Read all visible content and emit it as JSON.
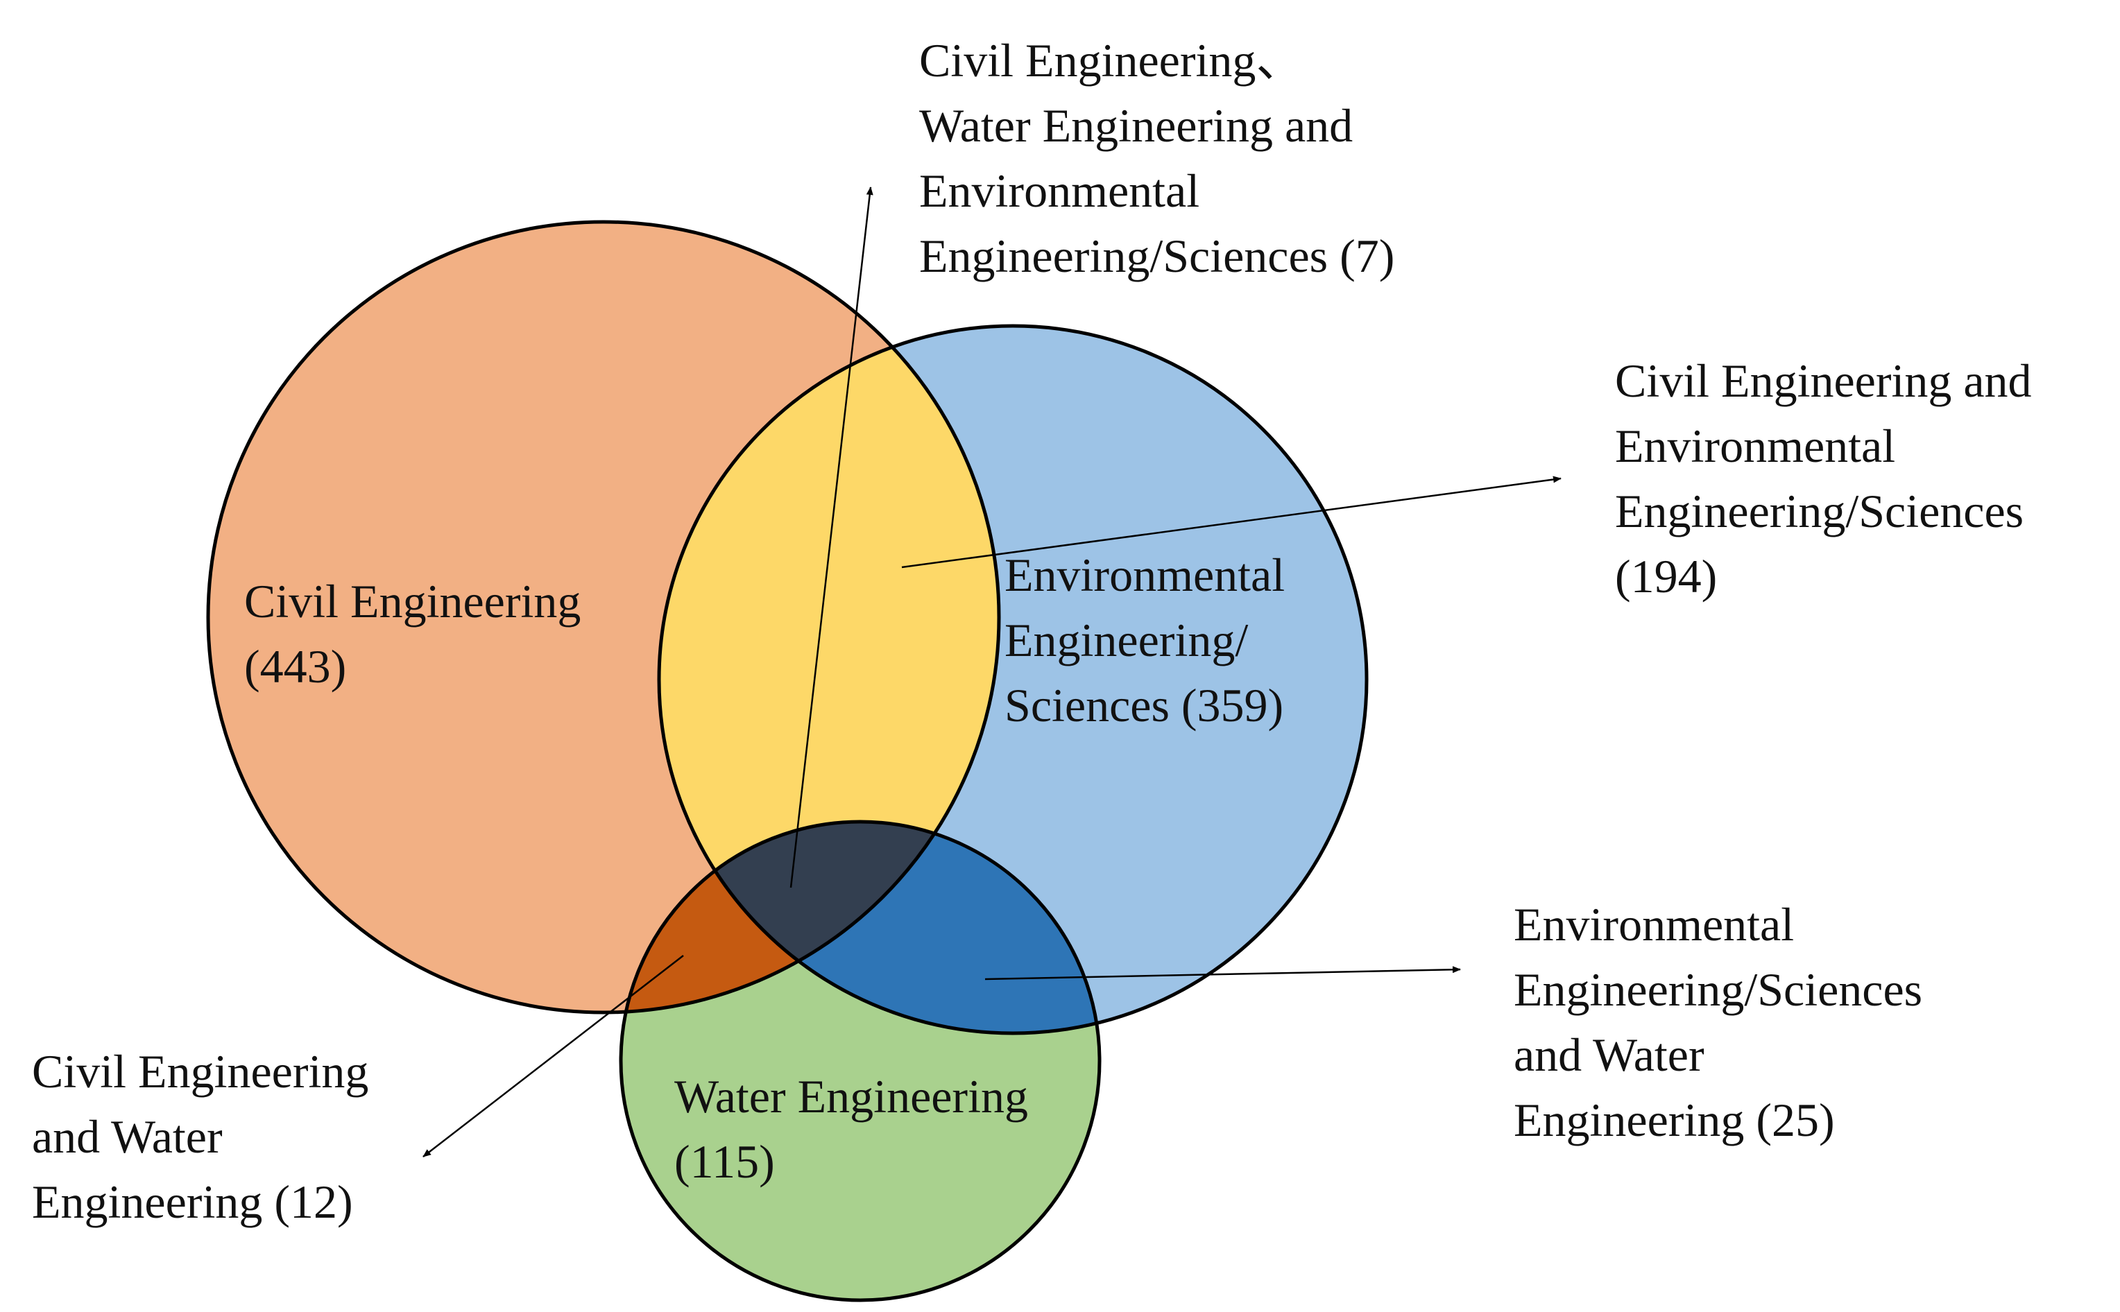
{
  "colors": {
    "civil": "#F2B084",
    "environmental": "#9DC3E6",
    "water": "#A9D18E",
    "civil_environmental": "#FDD868",
    "civil_water": "#C55A11",
    "environmental_water": "#2E75B6",
    "all_three": "#333F50",
    "outline": "#000000"
  },
  "sets": {
    "civil": {
      "lines": [
        "Civil Engineering",
        "(443)"
      ]
    },
    "environmental": {
      "lines": [
        "Environmental",
        "Engineering/",
        "Sciences (359)"
      ]
    },
    "water": {
      "lines": [
        "Water Engineering",
        "(115)"
      ]
    }
  },
  "intersections": {
    "all_three": {
      "lines": [
        "Civil Engineering、",
        "Water Engineering and",
        "Environmental",
        "Engineering/Sciences (7)"
      ]
    },
    "civil_environmental": {
      "lines": [
        "Civil Engineering and",
        "Environmental",
        "Engineering/Sciences",
        "(194)"
      ]
    },
    "environmental_water": {
      "lines": [
        "Environmental",
        "Engineering/Sciences",
        "and Water",
        "Engineering (25)"
      ]
    },
    "civil_water": {
      "lines": [
        "Civil Engineering",
        "and Water",
        "Engineering (12)"
      ]
    }
  }
}
